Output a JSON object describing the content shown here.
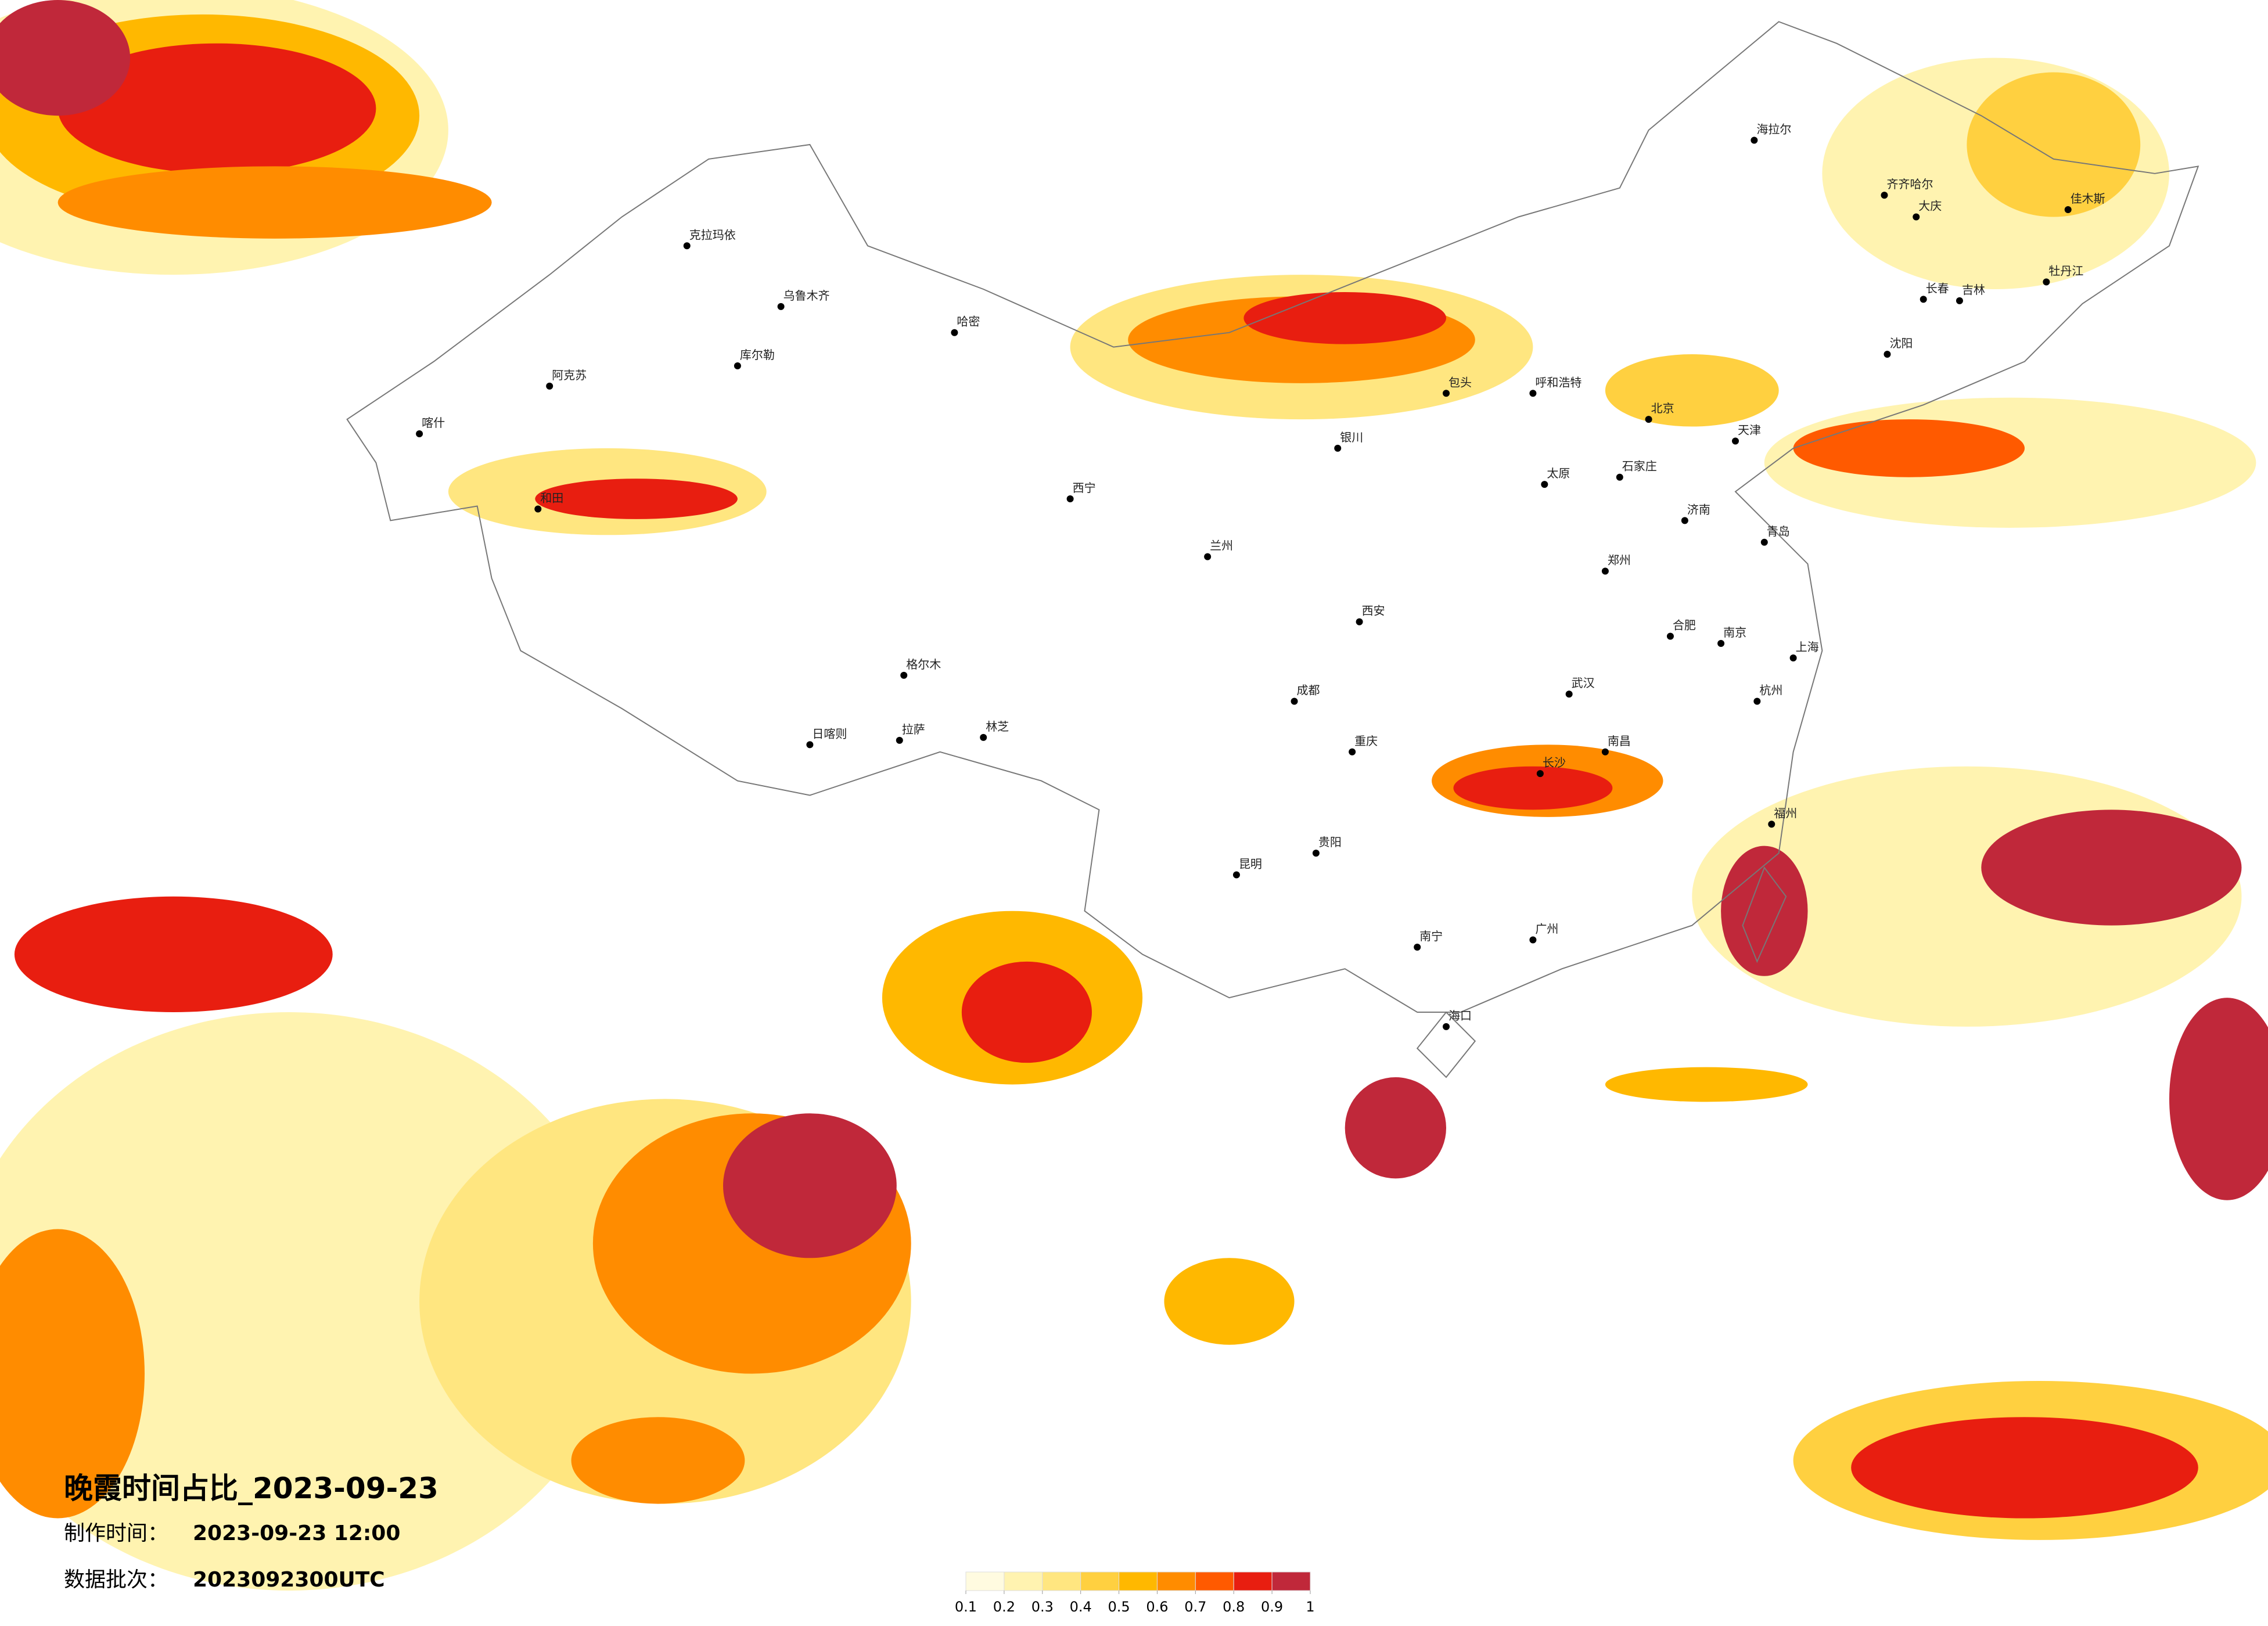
{
  "header": {
    "title": "晚霞时间占比_2023-09-23",
    "made_label": "制作时间：",
    "made_value": "2023-09-23 12:00",
    "batch_label": "数据批次：",
    "batch_value": "2023092300UTC"
  },
  "legend": {
    "colors": [
      "#fffbe0",
      "#fff3b0",
      "#ffe680",
      "#ffd040",
      "#ffb800",
      "#ff8c00",
      "#ff5a00",
      "#e81e10",
      "#c0283a"
    ],
    "ticks": [
      0.1,
      0.2,
      0.3,
      0.4,
      0.5,
      0.6,
      0.7,
      0.8,
      0.9,
      1
    ]
  },
  "cities": [
    "海拉尔",
    "齐齐哈尔",
    "大庆",
    "佳木斯",
    "牡丹江",
    "长春",
    "吉林",
    "沈阳",
    "呼和浩特",
    "包头",
    "北京",
    "天津",
    "石家庄",
    "太原",
    "济南",
    "青岛",
    "银川",
    "西宁",
    "兰州",
    "西安",
    "郑州",
    "合肥",
    "南京",
    "上海",
    "杭州",
    "武汉",
    "南昌",
    "长沙",
    "福州",
    "成都",
    "重庆",
    "贵阳",
    "昆明",
    "南宁",
    "广州",
    "海口",
    "拉萨",
    "林芝",
    "日喀则",
    "喀什",
    "阿克苏",
    "乌鲁木齐",
    "克拉玛依",
    "哈密",
    "库尔勒",
    "和田",
    "格尔木"
  ]
}
